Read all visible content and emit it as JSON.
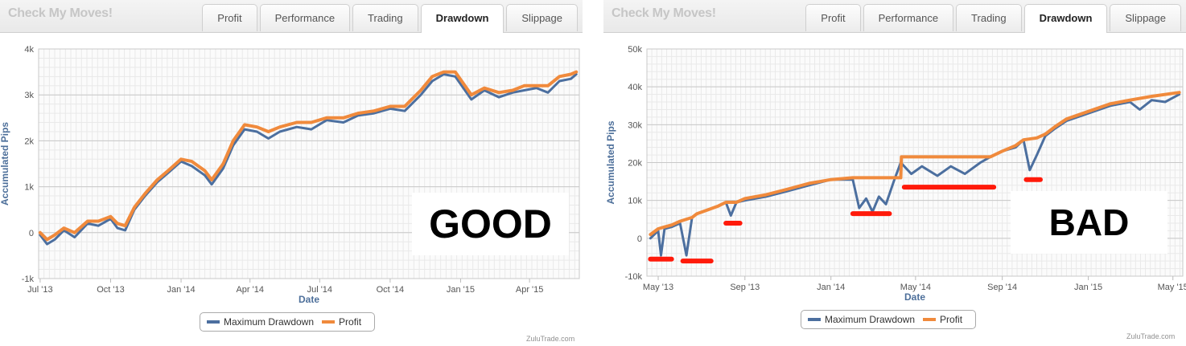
{
  "left": {
    "brand": "Check My Moves!",
    "tabs": [
      "Profit",
      "Performance",
      "Trading",
      "Drawdown",
      "Slippage"
    ],
    "active_tab": "Drawdown",
    "big_label": "GOOD",
    "credits": "ZuluTrade.com",
    "chart_data": {
      "type": "line",
      "title": "",
      "xlabel": "Date",
      "ylabel": "Accumulated Pips",
      "ylim": [
        -1000,
        4000
      ],
      "yticks": [
        -1000,
        0,
        1000,
        2000,
        3000,
        4000
      ],
      "ytick_labels": [
        "-1k",
        "0",
        "1k",
        "2k",
        "3k",
        "4k"
      ],
      "xlim": [
        "2013-06-29",
        "2015-06-05"
      ],
      "xticks": [
        "2013-07-01",
        "2013-10-01",
        "2014-01-01",
        "2014-04-01",
        "2014-07-01",
        "2014-10-01",
        "2015-01-01",
        "2015-04-01"
      ],
      "xtick_labels": [
        "Jul '13",
        "Oct '13",
        "Jan '14",
        "Apr '14",
        "Jul '14",
        "Oct '14",
        "Jan '15",
        "Apr '15"
      ],
      "grid": true,
      "legend_position": "bottom-center",
      "series": [
        {
          "name": "Maximum Drawdown",
          "color": "#4c6f9f",
          "x": [
            "2013-07-01",
            "2013-07-10",
            "2013-07-20",
            "2013-08-01",
            "2013-08-15",
            "2013-09-01",
            "2013-09-15",
            "2013-10-01",
            "2013-10-10",
            "2013-10-20",
            "2013-11-01",
            "2013-11-15",
            "2013-12-01",
            "2013-12-15",
            "2014-01-01",
            "2014-01-15",
            "2014-02-01",
            "2014-02-10",
            "2014-02-25",
            "2014-03-10",
            "2014-03-25",
            "2014-04-10",
            "2014-04-25",
            "2014-05-10",
            "2014-06-01",
            "2014-06-20",
            "2014-07-10",
            "2014-08-01",
            "2014-08-20",
            "2014-09-10",
            "2014-10-01",
            "2014-10-20",
            "2014-11-10",
            "2014-11-25",
            "2014-12-10",
            "2014-12-25",
            "2015-01-15",
            "2015-02-01",
            "2015-02-20",
            "2015-03-10",
            "2015-03-25",
            "2015-04-10",
            "2015-04-25",
            "2015-05-10",
            "2015-05-25",
            "2015-06-01"
          ],
          "values": [
            -50,
            -250,
            -150,
            50,
            -100,
            200,
            150,
            300,
            100,
            50,
            500,
            800,
            1100,
            1300,
            1550,
            1450,
            1250,
            1050,
            1400,
            1900,
            2250,
            2200,
            2050,
            2200,
            2300,
            2250,
            2450,
            2400,
            2550,
            2600,
            2700,
            2650,
            3000,
            3300,
            3450,
            3400,
            2900,
            3100,
            2950,
            3050,
            3100,
            3150,
            3050,
            3300,
            3350,
            3450
          ]
        },
        {
          "name": "Profit",
          "color": "#f08a3c",
          "x": [
            "2013-07-01",
            "2013-07-10",
            "2013-07-20",
            "2013-08-01",
            "2013-08-15",
            "2013-09-01",
            "2013-09-15",
            "2013-10-01",
            "2013-10-10",
            "2013-10-20",
            "2013-11-01",
            "2013-11-15",
            "2013-12-01",
            "2013-12-15",
            "2014-01-01",
            "2014-01-15",
            "2014-02-01",
            "2014-02-10",
            "2014-02-25",
            "2014-03-10",
            "2014-03-25",
            "2014-04-10",
            "2014-04-25",
            "2014-05-10",
            "2014-06-01",
            "2014-06-20",
            "2014-07-10",
            "2014-08-01",
            "2014-08-20",
            "2014-09-10",
            "2014-10-01",
            "2014-10-20",
            "2014-11-10",
            "2014-11-25",
            "2014-12-10",
            "2014-12-25",
            "2015-01-15",
            "2015-02-01",
            "2015-02-20",
            "2015-03-10",
            "2015-03-25",
            "2015-04-10",
            "2015-04-25",
            "2015-05-10",
            "2015-05-25",
            "2015-06-01"
          ],
          "values": [
            0,
            -150,
            -50,
            100,
            0,
            250,
            250,
            350,
            200,
            150,
            550,
            850,
            1150,
            1350,
            1600,
            1550,
            1350,
            1150,
            1500,
            2000,
            2350,
            2300,
            2200,
            2300,
            2400,
            2400,
            2500,
            2500,
            2600,
            2650,
            2750,
            2750,
            3100,
            3400,
            3500,
            3500,
            3000,
            3150,
            3050,
            3100,
            3200,
            3200,
            3200,
            3400,
            3450,
            3500
          ]
        }
      ]
    }
  },
  "right": {
    "brand": "Check My Moves!",
    "tabs": [
      "Profit",
      "Performance",
      "Trading",
      "Drawdown",
      "Slippage"
    ],
    "active_tab": "Drawdown",
    "big_label": "BAD",
    "credits": "ZuluTrade.com",
    "annotation_color": "#ff1a0a",
    "chart_data": {
      "type": "line",
      "title": "",
      "xlabel": "Date",
      "ylabel": "Accumulated Pips",
      "ylim": [
        -10000,
        50000
      ],
      "yticks": [
        -10000,
        0,
        10000,
        20000,
        30000,
        40000,
        50000
      ],
      "ytick_labels": [
        "-10k",
        "0",
        "10k",
        "20k",
        "30k",
        "40k",
        "50k"
      ],
      "xlim": [
        "2013-04-15",
        "2015-05-15"
      ],
      "xticks": [
        "2013-05-01",
        "2013-09-01",
        "2014-01-01",
        "2014-05-01",
        "2014-09-01",
        "2015-01-01",
        "2015-05-01"
      ],
      "xtick_labels": [
        "May '13",
        "Sep '13",
        "Jan '14",
        "May '14",
        "Sep '14",
        "Jan '15",
        "May '15"
      ],
      "grid": true,
      "legend_position": "bottom-center",
      "series": [
        {
          "name": "Maximum Drawdown",
          "color": "#4c6f9f",
          "x": [
            "2013-04-20",
            "2013-05-01",
            "2013-05-05",
            "2013-05-10",
            "2013-05-20",
            "2013-06-01",
            "2013-06-10",
            "2013-06-18",
            "2013-06-25",
            "2013-07-10",
            "2013-07-25",
            "2013-08-05",
            "2013-08-12",
            "2013-08-20",
            "2013-09-01",
            "2013-10-01",
            "2013-11-01",
            "2013-12-01",
            "2014-01-01",
            "2014-02-01",
            "2014-02-10",
            "2014-02-20",
            "2014-03-01",
            "2014-03-10",
            "2014-03-20",
            "2014-04-01",
            "2014-04-10",
            "2014-04-25",
            "2014-05-10",
            "2014-06-01",
            "2014-06-20",
            "2014-07-10",
            "2014-08-01",
            "2014-08-15",
            "2014-09-01",
            "2014-09-20",
            "2014-10-01",
            "2014-10-10",
            "2014-10-20",
            "2014-11-01",
            "2014-11-15",
            "2014-12-01",
            "2015-01-01",
            "2015-02-01",
            "2015-03-01",
            "2015-03-15",
            "2015-04-01",
            "2015-04-20",
            "2015-05-10"
          ],
          "values": [
            0,
            2000,
            -4500,
            2500,
            3000,
            4000,
            -4500,
            5500,
            6500,
            7500,
            8500,
            9500,
            6000,
            9500,
            10000,
            11000,
            12500,
            14000,
            15500,
            15500,
            8000,
            10500,
            7000,
            11000,
            9000,
            15500,
            20000,
            17000,
            19000,
            16500,
            19000,
            17000,
            20000,
            21500,
            23000,
            24000,
            26000,
            18000,
            22000,
            27000,
            29000,
            31000,
            33000,
            35000,
            36000,
            34000,
            36500,
            36000,
            38000
          ]
        },
        {
          "name": "Profit",
          "color": "#f08a3c",
          "x": [
            "2013-04-20",
            "2013-05-01",
            "2013-05-10",
            "2013-05-20",
            "2013-06-01",
            "2013-06-18",
            "2013-06-25",
            "2013-07-10",
            "2013-07-25",
            "2013-08-05",
            "2013-08-20",
            "2013-09-01",
            "2013-10-01",
            "2013-11-01",
            "2013-12-01",
            "2014-01-01",
            "2014-02-01",
            "2014-02-10",
            "2014-03-10",
            "2014-04-10",
            "2014-04-11",
            "2014-05-10",
            "2014-06-20",
            "2014-08-15",
            "2014-09-01",
            "2014-09-20",
            "2014-10-01",
            "2014-10-20",
            "2014-11-01",
            "2014-11-15",
            "2014-12-01",
            "2015-01-01",
            "2015-02-01",
            "2015-03-01",
            "2015-04-01",
            "2015-05-10"
          ],
          "values": [
            1000,
            2500,
            3000,
            3500,
            4500,
            5500,
            6500,
            7500,
            8500,
            9500,
            9500,
            10500,
            11500,
            13000,
            14500,
            15500,
            16000,
            16000,
            16000,
            16000,
            21500,
            21500,
            21500,
            21500,
            23000,
            24500,
            26000,
            26500,
            27500,
            29500,
            31500,
            33500,
            35500,
            36500,
            37500,
            38500
          ]
        }
      ]
    }
  }
}
